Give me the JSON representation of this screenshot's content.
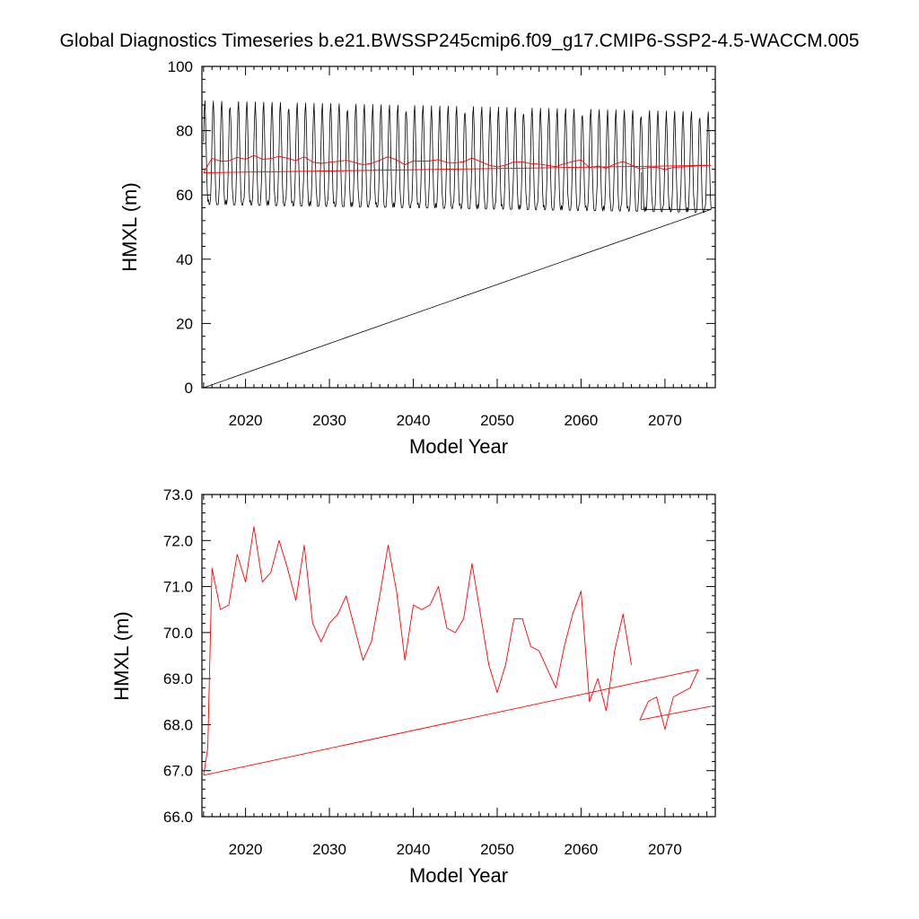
{
  "title": "Global Diagnostics Timeseries b.e21.BWSSP245cmip6.f09_g17.CMIP6-SSP2-4.5-WACCM.005",
  "colors": {
    "monthly": "#000000",
    "annual": "#ff0000",
    "axis": "#000000"
  },
  "chart_data": [
    {
      "type": "line",
      "xlabel": "Model Year",
      "ylabel": "HMXL (m)",
      "xlim": [
        2014.8,
        2076.0
      ],
      "ylim": [
        0,
        100
      ],
      "xticks": [
        2020,
        2030,
        2040,
        2050,
        2060,
        2070
      ],
      "yticks": [
        0,
        20,
        40,
        60,
        80,
        100
      ],
      "xtick_labels": [
        "2020",
        "2030",
        "2040",
        "2050",
        "2060",
        "2070"
      ],
      "ytick_labels": [
        "0",
        "20",
        "40",
        "60",
        "80",
        "100"
      ],
      "grid": false,
      "series": [
        {
          "key": "monthly",
          "color": "#000000",
          "x_start": 2015.0,
          "x_end": 2075.5,
          "period_years": 1.0,
          "max_start": 89.5,
          "max_end": 86.0,
          "min_start": 57.0,
          "min_end": 54.5,
          "tail_rect": {
            "x0": 2067.2,
            "x1": 2075.5,
            "y0": 55.5,
            "y1": 67.0
          },
          "wrap_line": [
            [
              2015.0,
              0.0
            ],
            [
              2075.5,
              55.5
            ]
          ]
        },
        {
          "key": "annual",
          "color": "#ff0000",
          "x": [
            2015.0,
            2016.0,
            2017.0,
            2018.0,
            2019.0,
            2020.0,
            2021.0,
            2022.0,
            2023.0,
            2024.0,
            2025.0,
            2026.0,
            2027.0,
            2028.0,
            2029.0,
            2030.0,
            2031.0,
            2032.0,
            2033.0,
            2034.0,
            2035.0,
            2036.0,
            2037.0,
            2038.0,
            2039.0,
            2040.0,
            2041.0,
            2042.0,
            2043.0,
            2044.0,
            2045.0,
            2046.0,
            2047.0,
            2048.0,
            2049.0,
            2050.0,
            2051.0,
            2052.0,
            2053.0,
            2054.0,
            2055.0,
            2056.0,
            2057.0,
            2058.0,
            2059.0,
            2060.0,
            2061.0,
            2062.0,
            2063.0,
            2064.0,
            2065.0,
            2066.0,
            2067.0,
            2068.0,
            2069.0,
            2070.0,
            2071.0,
            2072.0,
            2073.0,
            2074.0,
            2075.0
          ],
          "y": [
            66.9,
            71.4,
            70.5,
            70.6,
            71.7,
            71.1,
            72.3,
            71.1,
            71.3,
            72.0,
            71.4,
            70.7,
            71.9,
            70.2,
            69.8,
            70.2,
            70.4,
            70.8,
            70.1,
            69.4,
            69.8,
            70.8,
            71.9,
            70.9,
            69.4,
            70.6,
            70.5,
            70.6,
            71.0,
            70.1,
            70.0,
            70.3,
            71.5,
            70.4,
            69.3,
            68.7,
            69.3,
            70.3,
            70.3,
            69.7,
            69.6,
            69.2,
            68.8,
            69.7,
            70.4,
            70.9,
            68.5,
            69.0,
            68.3,
            69.6,
            70.4,
            69.3,
            68.1,
            68.5,
            68.6,
            67.9,
            68.6,
            68.7,
            68.8,
            69.2,
            69.2
          ],
          "wrap_line": [
            [
              2015.0,
              66.9
            ],
            [
              2075.5,
              69.2
            ]
          ]
        }
      ]
    },
    {
      "type": "line",
      "xlabel": "Model Year",
      "ylabel": "HMXL (m)",
      "xlim": [
        2014.8,
        2076.0
      ],
      "ylim": [
        66.0,
        73.0
      ],
      "xticks": [
        2020,
        2030,
        2040,
        2050,
        2060,
        2070
      ],
      "yticks": [
        66.0,
        67.0,
        68.0,
        69.0,
        70.0,
        71.0,
        72.0,
        73.0
      ],
      "xtick_labels": [
        "2020",
        "2030",
        "2040",
        "2050",
        "2060",
        "2070"
      ],
      "ytick_labels": [
        "66.0",
        "67.0",
        "68.0",
        "69.0",
        "70.0",
        "71.0",
        "72.0",
        "73.0"
      ],
      "grid": false,
      "series": [
        {
          "key": "annual",
          "color": "#ff0000",
          "segments": [
            {
              "x": [
                2015.0,
                2015.5,
                2016.0,
                2017.0,
                2018.0,
                2019.0,
                2020.0,
                2021.0,
                2022.0,
                2023.0,
                2024.0,
                2025.0,
                2026.0,
                2027.0,
                2028.0,
                2029.0,
                2030.0,
                2031.0,
                2032.0,
                2033.0,
                2034.0,
                2035.0,
                2036.0,
                2037.0,
                2038.0,
                2039.0,
                2040.0,
                2041.0,
                2042.0,
                2043.0,
                2044.0,
                2045.0,
                2046.0,
                2047.0,
                2048.0,
                2049.0,
                2050.0,
                2051.0,
                2052.0,
                2053.0,
                2054.0,
                2055.0,
                2056.0,
                2057.0,
                2058.0,
                2059.0,
                2060.0,
                2061.0,
                2062.0,
                2063.0,
                2064.0,
                2065.0,
                2066.0
              ],
              "y": [
                66.9,
                67.5,
                71.4,
                70.5,
                70.6,
                71.7,
                71.1,
                72.3,
                71.1,
                71.3,
                72.0,
                71.4,
                70.7,
                71.9,
                70.2,
                69.8,
                70.2,
                70.4,
                70.8,
                70.1,
                69.4,
                69.8,
                70.8,
                71.9,
                70.9,
                69.4,
                70.6,
                70.5,
                70.6,
                71.0,
                70.1,
                70.0,
                70.3,
                71.5,
                70.4,
                69.3,
                68.7,
                69.3,
                70.3,
                70.3,
                69.7,
                69.6,
                69.2,
                68.8,
                69.7,
                70.4,
                70.9,
                68.5,
                69.0,
                68.3,
                69.6,
                70.4,
                69.3
              ]
            },
            {
              "x": [
                2067.0,
                2068.0,
                2069.0,
                2070.0,
                2071.0,
                2072.0,
                2073.0,
                2074.0
              ],
              "y": [
                68.1,
                68.5,
                68.6,
                67.9,
                68.6,
                68.7,
                68.8,
                69.2
              ]
            }
          ],
          "wrap_lines": [
            [
              [
                2015.0,
                66.9
              ],
              [
                2074.0,
                69.2
              ]
            ],
            [
              [
                2067.0,
                68.1
              ],
              [
                2075.5,
                68.4
              ]
            ]
          ]
        }
      ]
    }
  ]
}
